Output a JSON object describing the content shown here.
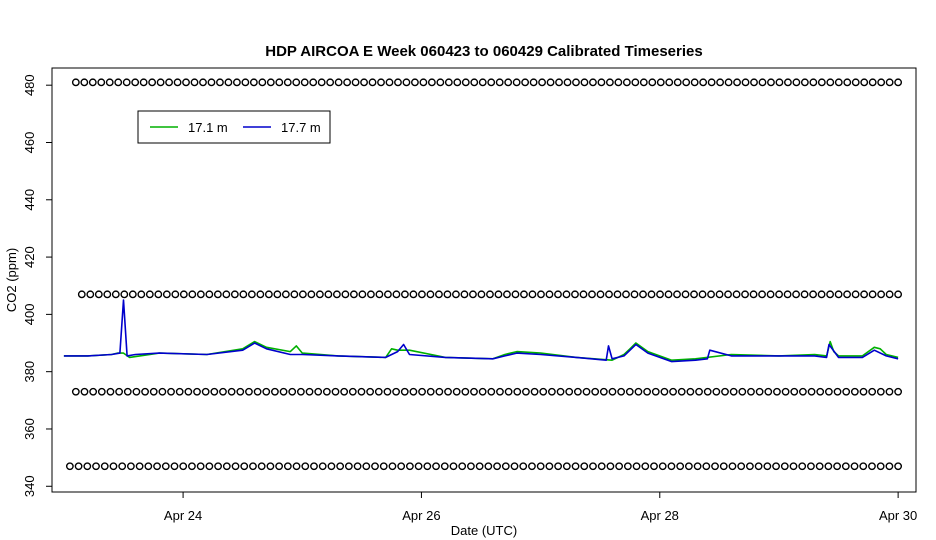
{
  "chart_data": {
    "type": "line",
    "title": "HDP AIRCOA E  Week 060423 to 060429  Calibrated Timeseries",
    "xlabel": "Date (UTC)",
    "ylabel": "CO2 (ppm)",
    "xlim_days": [
      22.9,
      30.15
    ],
    "ylim": [
      338,
      486
    ],
    "x_ticks": [
      {
        "value": 24,
        "label": "Apr 24"
      },
      {
        "value": 26,
        "label": "Apr 26"
      },
      {
        "value": 28,
        "label": "Apr 28"
      },
      {
        "value": 30,
        "label": "Apr 30"
      }
    ],
    "y_ticks": [
      340,
      360,
      380,
      400,
      420,
      440,
      460,
      480
    ],
    "legend": {
      "placement": "top-left",
      "entries": [
        {
          "label": "17.1 m",
          "color": "#00b000"
        },
        {
          "label": "17.7 m",
          "color": "#0000cc"
        }
      ]
    },
    "series": [
      {
        "name": "17.1 m",
        "color": "#00b000",
        "x": [
          23.0,
          23.2,
          23.4,
          23.45,
          23.5,
          23.55,
          23.8,
          24.2,
          24.5,
          24.6,
          24.7,
          24.9,
          24.95,
          25.0,
          25.3,
          25.7,
          25.75,
          25.8,
          25.9,
          26.2,
          26.6,
          26.7,
          26.8,
          27.0,
          27.3,
          27.6,
          27.7,
          27.75,
          27.8,
          27.9,
          28.1,
          28.3,
          28.6,
          29.0,
          29.3,
          29.4,
          29.43,
          29.46,
          29.5,
          29.7,
          29.8,
          29.85,
          29.9,
          30.0
        ],
        "y": [
          385.5,
          385.5,
          386.0,
          386.5,
          386.5,
          385.0,
          386.5,
          386.0,
          388.0,
          390.5,
          388.5,
          387.0,
          389.0,
          386.5,
          385.5,
          385.0,
          388.0,
          387.5,
          387.5,
          385.0,
          384.5,
          386.0,
          387.0,
          386.5,
          385.0,
          384.0,
          386.0,
          388.0,
          390.0,
          387.0,
          384.0,
          384.5,
          386.0,
          385.5,
          386.0,
          385.5,
          390.5,
          387.0,
          385.5,
          385.5,
          388.5,
          388.0,
          386.0,
          385.0
        ]
      },
      {
        "name": "17.7 m",
        "color": "#0000cc",
        "x": [
          23.0,
          23.2,
          23.4,
          23.47,
          23.5,
          23.53,
          23.6,
          23.8,
          24.2,
          24.5,
          24.6,
          24.7,
          24.9,
          25.0,
          25.3,
          25.7,
          25.8,
          25.85,
          25.9,
          26.2,
          26.6,
          26.7,
          26.8,
          27.0,
          27.3,
          27.55,
          27.57,
          27.6,
          27.7,
          27.8,
          27.9,
          28.1,
          28.3,
          28.4,
          28.42,
          28.6,
          29.0,
          29.3,
          29.4,
          29.42,
          29.5,
          29.7,
          29.8,
          29.9,
          30.0
        ],
        "y": [
          385.5,
          385.5,
          386.0,
          386.5,
          405.0,
          385.5,
          386.0,
          386.5,
          386.0,
          387.5,
          390.0,
          388.0,
          386.0,
          386.0,
          385.5,
          385.0,
          387.0,
          389.5,
          386.0,
          385.0,
          384.5,
          385.5,
          386.5,
          386.0,
          385.0,
          384.0,
          389.0,
          384.5,
          385.5,
          389.5,
          386.5,
          383.5,
          384.0,
          384.5,
          387.5,
          385.5,
          385.5,
          385.5,
          385.0,
          389.5,
          385.0,
          385.0,
          387.5,
          385.5,
          384.5
        ]
      },
      {
        "name": "marker row 481",
        "marker": "circle",
        "x_start": 23.1,
        "x_end": 30.0,
        "count": 98,
        "y": 481
      },
      {
        "name": "marker row 407",
        "marker": "circle",
        "x_start": 23.15,
        "x_end": 30.0,
        "count": 97,
        "y": 407
      },
      {
        "name": "marker row 373",
        "marker": "circle",
        "x_start": 23.1,
        "x_end": 30.0,
        "count": 96,
        "y": 373
      },
      {
        "name": "marker row 347",
        "marker": "circle",
        "x_start": 23.05,
        "x_end": 30.0,
        "count": 96,
        "y": 347
      }
    ]
  }
}
